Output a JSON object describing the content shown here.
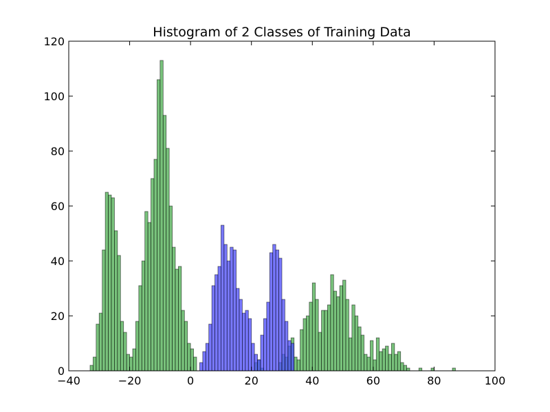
{
  "chart_data": {
    "type": "bar",
    "title": "Histogram of 2 Classes of Training Data",
    "xlabel": "",
    "ylabel": "",
    "xlim": [
      -40,
      100
    ],
    "ylim": [
      0,
      120
    ],
    "xticks": [
      -40,
      -20,
      0,
      20,
      40,
      60,
      80,
      100
    ],
    "yticks": [
      0,
      20,
      40,
      60,
      80,
      100,
      120
    ],
    "xtick_labels": [
      "−40",
      "−20",
      "0",
      "20",
      "40",
      "60",
      "80",
      "100"
    ],
    "ytick_labels": [
      "0",
      "20",
      "40",
      "60",
      "80",
      "100",
      "120"
    ],
    "grid": false,
    "bin_width": 1.0,
    "series": [
      {
        "color": "#4caf50",
        "opacity": 0.75,
        "bins": [
          [
            -33,
            2
          ],
          [
            -32,
            5
          ],
          [
            -31,
            17
          ],
          [
            -30,
            21
          ],
          [
            -29,
            44
          ],
          [
            -28,
            65
          ],
          [
            -27,
            64
          ],
          [
            -26,
            63
          ],
          [
            -25,
            51
          ],
          [
            -24,
            42
          ],
          [
            -23,
            18
          ],
          [
            -22,
            14
          ],
          [
            -21,
            6
          ],
          [
            -20,
            5
          ],
          [
            -19,
            8
          ],
          [
            -18,
            18
          ],
          [
            -17,
            31
          ],
          [
            -16,
            40
          ],
          [
            -15,
            58
          ],
          [
            -14,
            54
          ],
          [
            -13,
            70
          ],
          [
            -12,
            77
          ],
          [
            -11,
            106
          ],
          [
            -10,
            113
          ],
          [
            -9,
            93
          ],
          [
            -8,
            81
          ],
          [
            -7,
            60
          ],
          [
            -6,
            45
          ],
          [
            -5,
            37
          ],
          [
            -4,
            38
          ],
          [
            -3,
            22
          ],
          [
            -2,
            18
          ],
          [
            -1,
            10
          ],
          [
            0,
            8
          ],
          [
            1,
            5
          ],
          [
            21,
            3
          ],
          [
            22,
            4
          ],
          [
            23,
            1
          ],
          [
            29,
            3
          ],
          [
            30,
            6
          ],
          [
            31,
            5
          ],
          [
            32,
            9
          ],
          [
            33,
            12
          ],
          [
            34,
            5
          ],
          [
            35,
            4
          ],
          [
            36,
            15
          ],
          [
            37,
            19
          ],
          [
            38,
            20
          ],
          [
            39,
            25
          ],
          [
            40,
            32
          ],
          [
            41,
            26
          ],
          [
            42,
            14
          ],
          [
            43,
            22
          ],
          [
            44,
            22
          ],
          [
            45,
            24
          ],
          [
            46,
            35
          ],
          [
            47,
            29
          ],
          [
            48,
            27
          ],
          [
            49,
            31
          ],
          [
            50,
            33
          ],
          [
            51,
            26
          ],
          [
            52,
            12
          ],
          [
            53,
            24
          ],
          [
            54,
            20
          ],
          [
            55,
            16
          ],
          [
            56,
            13
          ],
          [
            57,
            6
          ],
          [
            58,
            5
          ],
          [
            59,
            11
          ],
          [
            60,
            4
          ],
          [
            61,
            12
          ],
          [
            62,
            7
          ],
          [
            63,
            8
          ],
          [
            64,
            9
          ],
          [
            65,
            6
          ],
          [
            66,
            10
          ],
          [
            67,
            6
          ],
          [
            68,
            7
          ],
          [
            69,
            3
          ],
          [
            70,
            2
          ],
          [
            71,
            1
          ],
          [
            75,
            1
          ],
          [
            79,
            1
          ],
          [
            86,
            1
          ]
        ]
      },
      {
        "color": "#4b4bff",
        "opacity": 0.75,
        "bins": [
          [
            3,
            3
          ],
          [
            4,
            7
          ],
          [
            5,
            10
          ],
          [
            6,
            17
          ],
          [
            7,
            31
          ],
          [
            8,
            35
          ],
          [
            9,
            38
          ],
          [
            10,
            53
          ],
          [
            11,
            46
          ],
          [
            12,
            40
          ],
          [
            13,
            45
          ],
          [
            14,
            44
          ],
          [
            15,
            30
          ],
          [
            16,
            26
          ],
          [
            17,
            21
          ],
          [
            18,
            22
          ],
          [
            19,
            19
          ],
          [
            20,
            10
          ],
          [
            21,
            6
          ],
          [
            22,
            4
          ],
          [
            23,
            13
          ],
          [
            24,
            19
          ],
          [
            25,
            25
          ],
          [
            26,
            43
          ],
          [
            27,
            46
          ],
          [
            28,
            44
          ],
          [
            29,
            41
          ],
          [
            30,
            26
          ],
          [
            31,
            18
          ],
          [
            32,
            11
          ],
          [
            33,
            10
          ]
        ]
      }
    ]
  }
}
